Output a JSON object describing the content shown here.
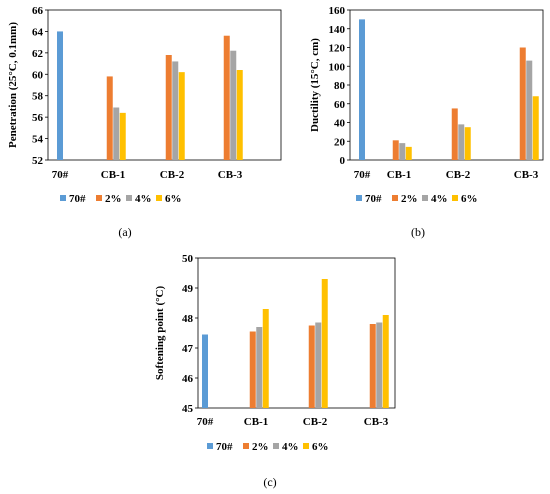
{
  "colors": {
    "s70": "#5b9bd5",
    "s2": "#ed7d31",
    "s4": "#a5a5a5",
    "s6": "#ffc000"
  },
  "chart_data": [
    {
      "type": "bar",
      "caption": "(a)",
      "ylabel": "Penetration (25°C, 0.1mm)",
      "ylim": [
        52,
        66
      ],
      "yticks": [
        52,
        54,
        56,
        58,
        60,
        62,
        64,
        66
      ],
      "categories": [
        "70#",
        "CB-1",
        "CB-2",
        "CB-3"
      ],
      "series": [
        {
          "name": "70#",
          "values": [
            64.0,
            null,
            null,
            null
          ]
        },
        {
          "name": "2%",
          "values": [
            null,
            59.8,
            61.8,
            63.6
          ]
        },
        {
          "name": "4%",
          "values": [
            null,
            56.9,
            61.2,
            62.2
          ]
        },
        {
          "name": "6%",
          "values": [
            null,
            56.4,
            60.2,
            60.4
          ]
        }
      ],
      "legend": "bottom"
    },
    {
      "type": "bar",
      "caption": "(b)",
      "ylabel": "Ductility (15°C, cm)",
      "ylim": [
        0,
        160
      ],
      "yticks": [
        0,
        20,
        40,
        60,
        80,
        100,
        120,
        140,
        160
      ],
      "categories": [
        "70#",
        "CB-1",
        "CB-2",
        "CB-3"
      ],
      "series": [
        {
          "name": "70#",
          "values": [
            150,
            null,
            null,
            null
          ]
        },
        {
          "name": "2%",
          "values": [
            null,
            21,
            55,
            120
          ]
        },
        {
          "name": "4%",
          "values": [
            null,
            18,
            38,
            106
          ]
        },
        {
          "name": "6%",
          "values": [
            null,
            14,
            35,
            68
          ]
        }
      ],
      "legend": "bottom"
    },
    {
      "type": "bar",
      "caption": "(c)",
      "ylabel": "Softening point (°C)",
      "ylim": [
        45,
        50
      ],
      "yticks": [
        45,
        46,
        47,
        48,
        49,
        50
      ],
      "categories": [
        "70#",
        "CB-1",
        "CB-2",
        "CB-3"
      ],
      "series": [
        {
          "name": "70#",
          "values": [
            47.45,
            null,
            null,
            null
          ]
        },
        {
          "name": "2%",
          "values": [
            null,
            47.55,
            47.75,
            47.8
          ]
        },
        {
          "name": "4%",
          "values": [
            null,
            47.7,
            47.85,
            47.85
          ]
        },
        {
          "name": "6%",
          "values": [
            null,
            48.3,
            49.3,
            48.1
          ]
        }
      ],
      "legend": "bottom"
    }
  ]
}
